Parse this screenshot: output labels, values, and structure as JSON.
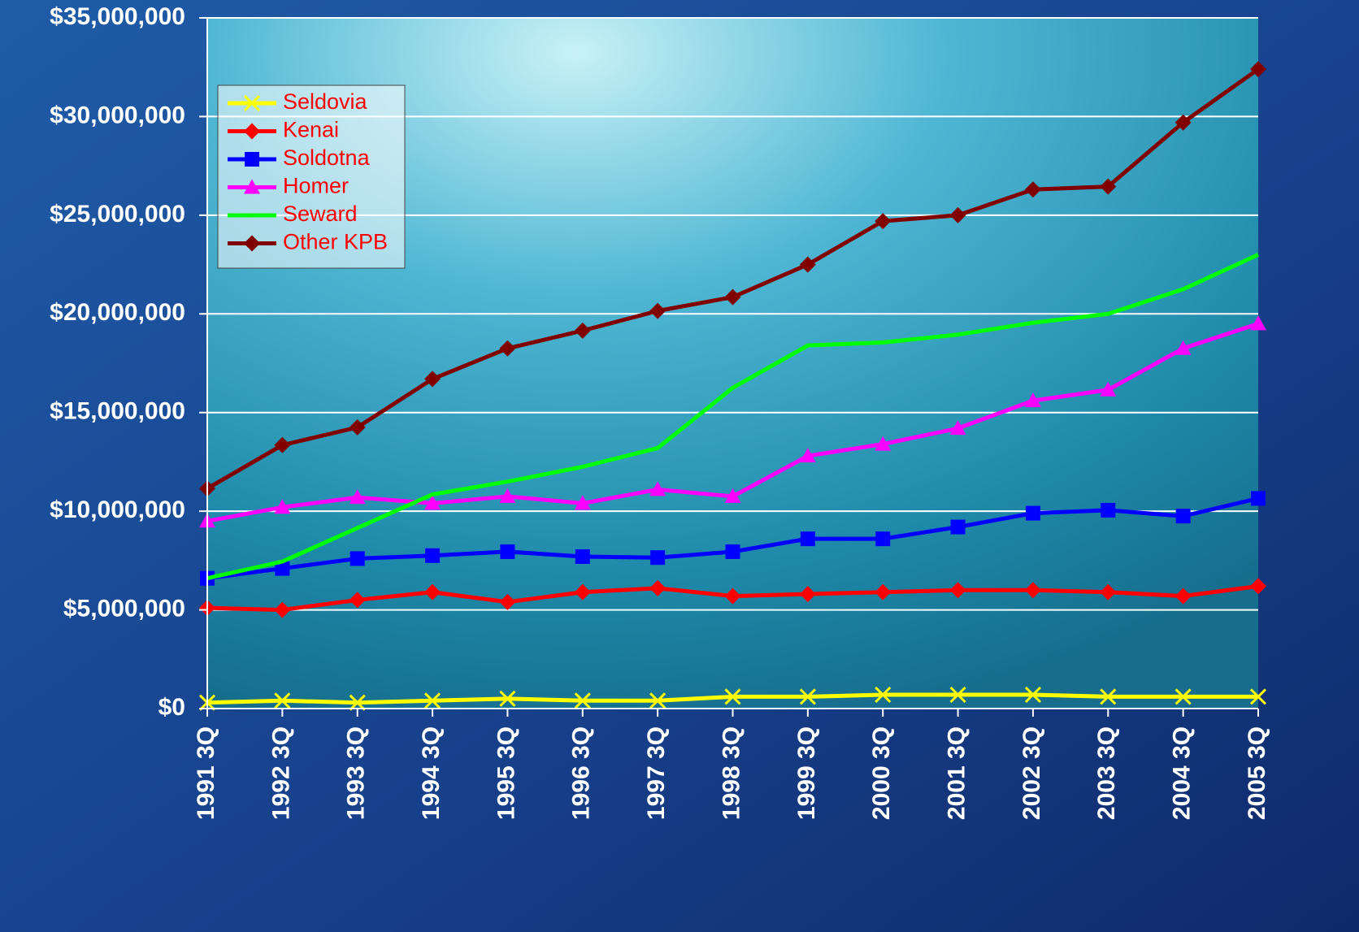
{
  "chart_data": {
    "type": "line",
    "categories": [
      "1991 3Q",
      "1992 3Q",
      "1993 3Q",
      "1994 3Q",
      "1995 3Q",
      "1996 3Q",
      "1997 3Q",
      "1998 3Q",
      "1999 3Q",
      "2000 3Q",
      "2001 3Q",
      "2002 3Q",
      "2003 3Q",
      "2004 3Q",
      "2005 3Q"
    ],
    "series": [
      {
        "name": "Seldovia",
        "color": "#ffff00",
        "marker": "x",
        "values": [
          300000,
          400000,
          300000,
          400000,
          500000,
          400000,
          400000,
          600000,
          600000,
          700000,
          700000,
          700000,
          600000,
          600000,
          600000
        ]
      },
      {
        "name": "Kenai",
        "color": "#ff0000",
        "marker": "diamond",
        "values": [
          5100000,
          5000000,
          5500000,
          5900000,
          5400000,
          5900000,
          6100000,
          5700000,
          5800000,
          5900000,
          6000000,
          6000000,
          5900000,
          5700000,
          6200000
        ]
      },
      {
        "name": "Soldotna",
        "color": "#0000ff",
        "marker": "square",
        "values": [
          6600000,
          7100000,
          7600000,
          7750000,
          7950000,
          7700000,
          7650000,
          7950000,
          8600000,
          8600000,
          9200000,
          9900000,
          10050000,
          9750000,
          10650000
        ]
      },
      {
        "name": "Homer",
        "color": "#ff00ff",
        "marker": "triangle",
        "values": [
          9500000,
          10200000,
          10700000,
          10400000,
          10750000,
          10400000,
          11100000,
          10750000,
          12800000,
          13400000,
          14200000,
          15600000,
          16150000,
          18250000,
          19500000
        ]
      },
      {
        "name": "Seward",
        "color": "#00ff00",
        "marker": "none",
        "values": [
          6600000,
          7450000,
          9150000,
          10850000,
          11500000,
          12250000,
          13200000,
          16250000,
          18400000,
          18550000,
          18950000,
          19550000,
          20000000,
          21250000,
          23000000
        ]
      },
      {
        "name": "Other KPB",
        "color": "#800000",
        "marker": "diamond",
        "values": [
          11150000,
          13350000,
          14250000,
          16700000,
          18250000,
          19150000,
          20150000,
          20850000,
          22500000,
          24700000,
          25000000,
          26300000,
          26450000,
          29700000,
          32400000
        ]
      }
    ],
    "ylim": [
      0,
      35000000
    ],
    "yticks": [
      {
        "value": 0,
        "label": "$0"
      },
      {
        "value": 5000000,
        "label": "$5,000,000"
      },
      {
        "value": 10000000,
        "label": "$10,000,000"
      },
      {
        "value": 15000000,
        "label": "$15,000,000"
      },
      {
        "value": 20000000,
        "label": "$20,000,000"
      },
      {
        "value": 25000000,
        "label": "$25,000,000"
      },
      {
        "value": 30000000,
        "label": "$30,000,000"
      },
      {
        "value": 35000000,
        "label": "$35,000,000"
      }
    ],
    "grid": true,
    "legend": "upper left"
  }
}
